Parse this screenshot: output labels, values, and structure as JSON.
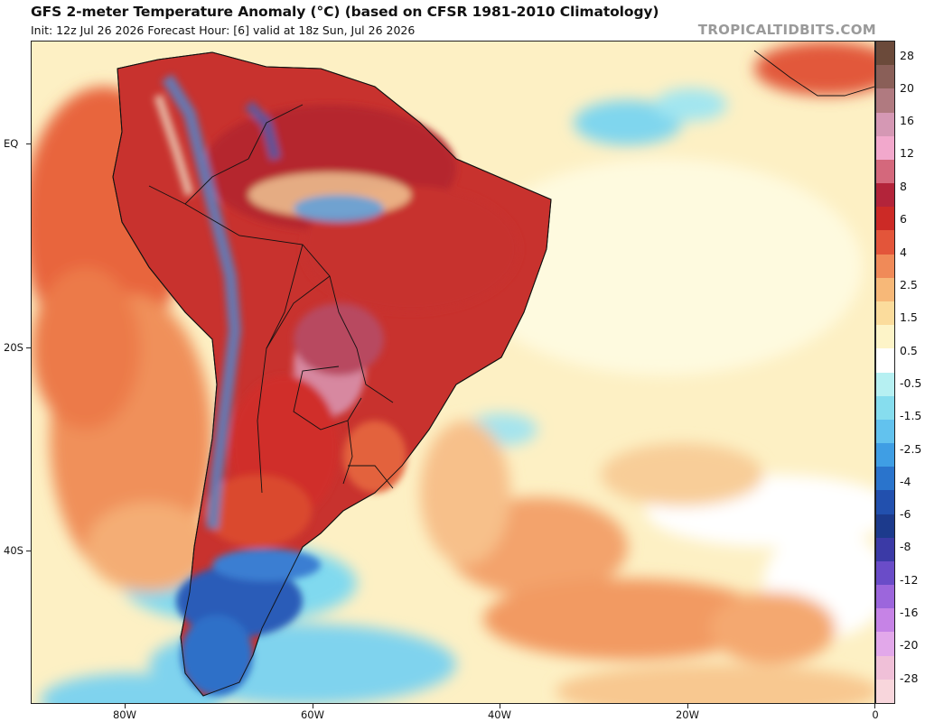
{
  "header": {
    "title": "GFS 2-meter Temperature Anomaly (°C) (based on CFSR 1981-2010 Climatology)",
    "subtitle": "Init: 12z Jul 26 2026   Forecast Hour: [6]   valid at 18z Sun, Jul 26 2026",
    "watermark": "TROPICALTIDBITS.COM"
  },
  "axes": {
    "lat_labels": [
      "EQ",
      "20S",
      "40S"
    ],
    "lon_labels": [
      "80W",
      "60W",
      "40W",
      "20W",
      "0"
    ]
  },
  "colorbar": {
    "labels": [
      "28",
      "20",
      "16",
      "12",
      "8",
      "6",
      "4",
      "2.5",
      "1.5",
      "0.5",
      "-0.5",
      "-1.5",
      "-2.5",
      "-4",
      "-6",
      "-8",
      "-12",
      "-16",
      "-20",
      "-28"
    ],
    "colors": [
      "#6b4a3a",
      "#8a5f58",
      "#b07a80",
      "#d598b4",
      "#f2a8cc",
      "#d4687c",
      "#b3243a",
      "#cc2a26",
      "#e3553a",
      "#f08a58",
      "#f7b878",
      "#fbdc9c",
      "#fdf4c8",
      "#ffffff",
      "#b6f0f2",
      "#86ddee",
      "#62c2ee",
      "#3f9ee4",
      "#2a74cc",
      "#2250ae",
      "#1c3a8c",
      "#3b3aa6",
      "#6a4cc8",
      "#9c66dc",
      "#c683e6",
      "#e2a8ea",
      "#f0c0d8",
      "#f8d6dc"
    ]
  }
}
